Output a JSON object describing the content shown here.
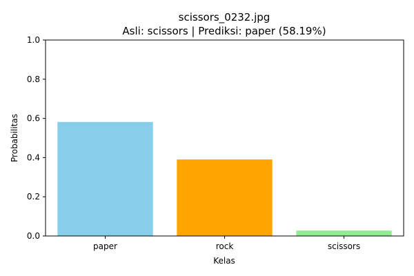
{
  "chart_data": {
    "type": "bar",
    "title_line1": "scissors_0232.jpg",
    "title_line2": "Asli: scissors | Prediksi: paper (58.19%)",
    "xlabel": "Kelas",
    "ylabel": "Probabilitas",
    "categories": [
      "paper",
      "rock",
      "scissors"
    ],
    "values": [
      0.5819,
      0.3905,
      0.0276
    ],
    "colors": [
      "#87ceeb",
      "#ffa500",
      "#90ee90"
    ],
    "ylim": [
      0,
      1.0
    ],
    "yticks": [
      0.0,
      0.2,
      0.4,
      0.6,
      0.8,
      1.0
    ],
    "ytick_labels": [
      "0.0",
      "0.2",
      "0.4",
      "0.6",
      "0.8",
      "1.0"
    ],
    "grid": false,
    "legend": "none"
  }
}
